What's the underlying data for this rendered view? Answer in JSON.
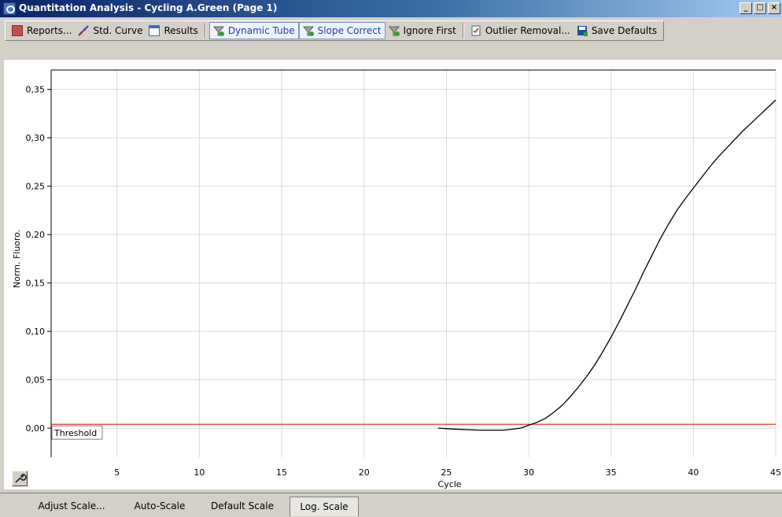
{
  "window": {
    "title": "Quantitation Analysis - Cycling A.Green (Page 1)",
    "icon": "analysis-window-icon",
    "min_label": "_",
    "max_label": "□",
    "close_label": "×"
  },
  "toolbar": {
    "reports": "Reports...",
    "std_curve": "Std. Curve",
    "results": "Results",
    "dynamic_tube": "Dynamic Tube",
    "slope_correct": "Slope Correct",
    "ignore_first": "Ignore First",
    "outlier_removal": "Outlier Removal...",
    "save_defaults": "Save Defaults"
  },
  "bottom_bar": {
    "adjust_scale": "Adjust Scale...",
    "auto_scale": "Auto-Scale",
    "default_scale": "Default Scale",
    "log_scale": "Log. Scale"
  },
  "colors": {
    "curve": "#000000",
    "threshold": "#e02010",
    "grid": "#d9d9d9"
  },
  "chart_data": {
    "type": "line",
    "xlabel": "Cycle",
    "ylabel": "Norm. Fluoro.",
    "xlim": [
      1,
      45
    ],
    "ylim": [
      -0.03,
      0.37
    ],
    "x_ticks": [
      5,
      10,
      15,
      20,
      25,
      30,
      35,
      40,
      45
    ],
    "y_ticks": [
      0.0,
      0.05,
      0.1,
      0.15,
      0.2,
      0.25,
      0.3,
      0.35
    ],
    "y_tick_labels": [
      "0,00",
      "0,05",
      "0,10",
      "0,15",
      "0,20",
      "0,25",
      "0,30",
      "0,35"
    ],
    "threshold": {
      "label": "Threshold",
      "value": 0.004
    },
    "grid": true,
    "series": [
      {
        "x": [
          24.5,
          25.5,
          27.0,
          28.5,
          29.5,
          30.0,
          30.5,
          31.0,
          31.5,
          32.0,
          32.5,
          33.0,
          33.5,
          34.0,
          34.5,
          35.0,
          35.5,
          36.0,
          36.5,
          37.0,
          37.5,
          38.0,
          38.5,
          39.0,
          39.5,
          40.0,
          40.5,
          41.0,
          41.5,
          42.0,
          42.5,
          43.0,
          43.5,
          44.0,
          44.5,
          45.0
        ],
        "y": [
          0.0,
          -0.001,
          -0.002,
          -0.002,
          0.0,
          0.003,
          0.006,
          0.01,
          0.016,
          0.023,
          0.032,
          0.042,
          0.053,
          0.065,
          0.079,
          0.094,
          0.11,
          0.127,
          0.144,
          0.162,
          0.179,
          0.196,
          0.211,
          0.225,
          0.237,
          0.248,
          0.259,
          0.27,
          0.28,
          0.289,
          0.298,
          0.307,
          0.315,
          0.323,
          0.331,
          0.339
        ]
      }
    ]
  }
}
